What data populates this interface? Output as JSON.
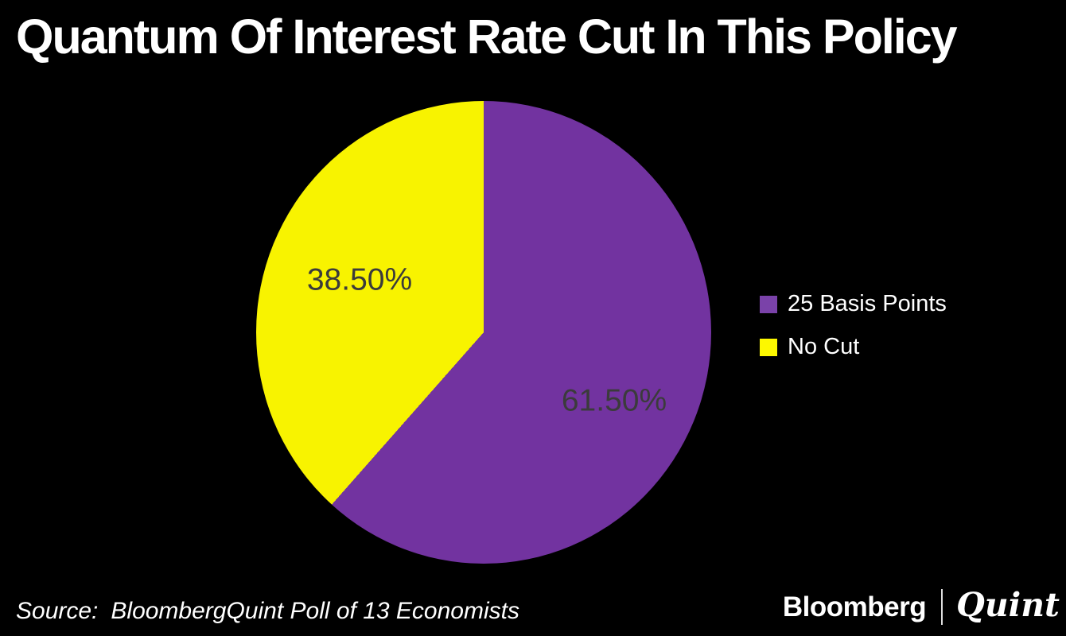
{
  "title": "Quantum Of Interest Rate Cut In This Policy",
  "chart_data": {
    "type": "pie",
    "title": "Quantum Of Interest Rate Cut In This Policy",
    "labels": [
      "25 Basis Points",
      "No Cut"
    ],
    "values": [
      61.5,
      38.5
    ],
    "value_labels": [
      "61.50%",
      "38.50%"
    ],
    "colors": [
      "#7233a0",
      "#f8f300"
    ],
    "slice_label_color": "#3b3b3b",
    "start_angle_deg": 0,
    "direction": "clockwise",
    "legend_position": "right",
    "background": "#000000"
  },
  "legend": {
    "items": [
      {
        "label": "25 Basis Points",
        "color": "#7a42a9"
      },
      {
        "label": "No Cut",
        "color": "#fdf800"
      }
    ]
  },
  "source": {
    "label": "Source:",
    "text": "BloombergQuint Poll of 13 Economists"
  },
  "footer_logo": {
    "bloomberg": "Bloomberg",
    "quint": "Quint"
  }
}
